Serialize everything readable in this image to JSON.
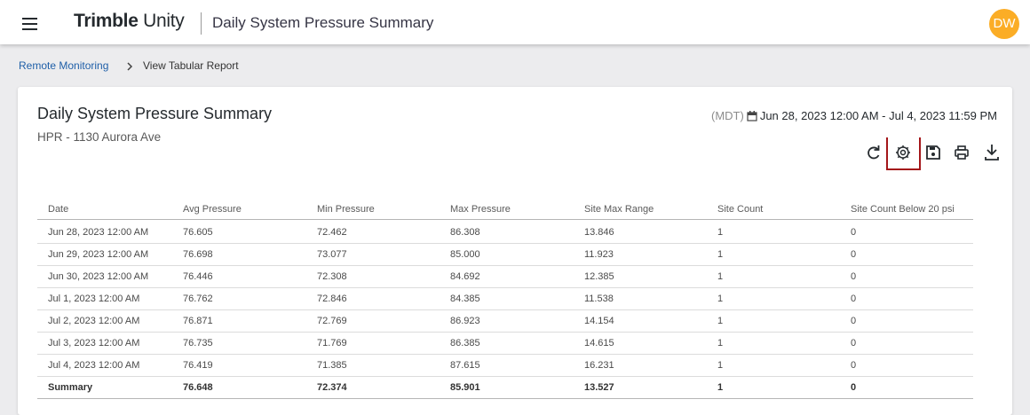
{
  "header": {
    "brand": "Trimble",
    "product": "Unity",
    "title": "Daily System Pressure Summary",
    "avatar": "DW"
  },
  "breadcrumb": [
    "Remote Monitoring",
    "View Tabular Report"
  ],
  "report": {
    "title": "Daily System Pressure Summary",
    "subtitle": "HPR - 1130 Aurora Ave",
    "timezone": "(MDT)",
    "date_range": "Jun 28, 2023 12:00 AM - Jul 4, 2023 11:59 PM"
  },
  "table": {
    "columns": [
      "Date",
      "Avg Pressure",
      "Min Pressure",
      "Max Pressure",
      "Site Max Range",
      "Site Count",
      "Site Count Below 20 psi"
    ],
    "rows": [
      [
        "Jun 28, 2023 12:00 AM",
        "76.605",
        "72.462",
        "86.308",
        "13.846",
        "1",
        "0"
      ],
      [
        "Jun 29, 2023 12:00 AM",
        "76.698",
        "73.077",
        "85.000",
        "11.923",
        "1",
        "0"
      ],
      [
        "Jun 30, 2023 12:00 AM",
        "76.446",
        "72.308",
        "84.692",
        "12.385",
        "1",
        "0"
      ],
      [
        "Jul 1, 2023 12:00 AM",
        "76.762",
        "72.846",
        "84.385",
        "11.538",
        "1",
        "0"
      ],
      [
        "Jul 2, 2023 12:00 AM",
        "76.871",
        "72.769",
        "86.923",
        "14.154",
        "1",
        "0"
      ],
      [
        "Jul 3, 2023 12:00 AM",
        "76.735",
        "71.769",
        "86.385",
        "14.615",
        "1",
        "0"
      ],
      [
        "Jul 4, 2023 12:00 AM",
        "76.419",
        "71.385",
        "87.615",
        "16.231",
        "1",
        "0"
      ]
    ],
    "summary": [
      "Summary",
      "76.648",
      "72.374",
      "85.901",
      "13.527",
      "1",
      "0"
    ]
  }
}
